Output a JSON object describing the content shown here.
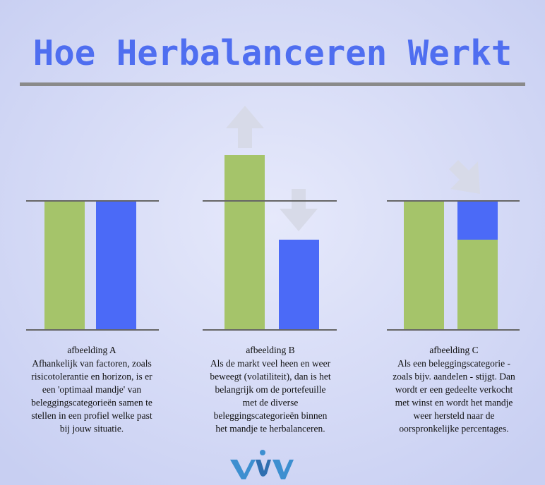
{
  "title": "Hoe Herbalanceren Werkt",
  "panels": [
    {
      "caption": "afbeelding A",
      "lines": [
        "Afhankelijk van factoren, zoals",
        "risicotolerantie en horizon, is er",
        "een 'optimaal mandje' van",
        "beleggingscategorieën samen te",
        "stellen in een profiel welke past",
        "bij jouw situatie."
      ]
    },
    {
      "caption": "afbeelding B",
      "lines": [
        "Als de markt veel heen en weer",
        "beweegt (volatiliteit), dan is het",
        "belangrijk om de portefeuille",
        "met de diverse",
        "beleggingscategorieën binnen",
        "het mandje te herbalanceren."
      ]
    },
    {
      "caption": "afbeelding C",
      "lines": [
        "Als een beleggingscategorie -",
        "zoals bijv. aandelen - stijgt. Dan",
        "wordt er een gedeelte verkocht",
        "met winst en wordt het mandje",
        "weer hersteld naar de",
        "oorspronkelijke percentages."
      ]
    }
  ]
}
